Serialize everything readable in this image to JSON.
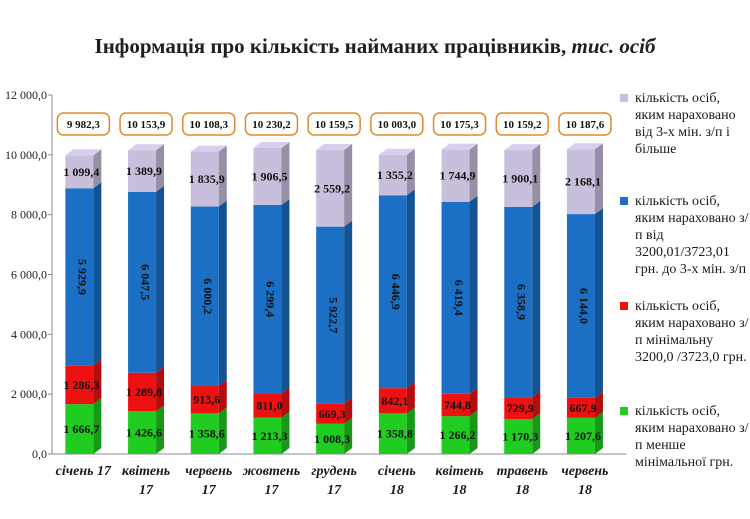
{
  "chart_data": {
    "type": "bar",
    "stacked": true,
    "title": "Інформація про кількість найманих працівників,",
    "title_unit": "тис. осіб",
    "categories": [
      "січень 17",
      "квітень 17",
      "червень 17",
      "жовтень 17",
      "грудень 17",
      "січень 18",
      "квітень 18",
      "травень 18",
      "червень 18"
    ],
    "ylim": [
      0,
      12000
    ],
    "yticks": [
      "0,0",
      "2 000,0",
      "4 000,0",
      "6 000,0",
      "8 000,0",
      "10 000,0",
      "12 000,0"
    ],
    "ytick_values": [
      0,
      2000,
      4000,
      6000,
      8000,
      10000,
      12000
    ],
    "totals": [
      9982.3,
      10153.9,
      10108.3,
      10230.2,
      10159.5,
      10003.0,
      10175.3,
      10159.2,
      10187.6
    ],
    "total_labels": [
      "9 982,3",
      "10 153,9",
      "10 108,3",
      "10 230,2",
      "10 159,5",
      "10 003,0",
      "10 175,3",
      "10 159,2",
      "10 187,6"
    ],
    "series": [
      {
        "name": "кількість осіб, яким нараховано з/п менше мінімальної грн.",
        "color": "#1fcc1f",
        "values": [
          1666.7,
          1426.6,
          1358.6,
          1213.3,
          1008.3,
          1358.8,
          1266.2,
          1170.3,
          1207.6
        ],
        "labels": [
          "1 666,7",
          "1 426,6",
          "1 358,6",
          "1 213,3",
          "1 008,3",
          "1 358,8",
          "1 266,2",
          "1 170,3",
          "1 207,6"
        ]
      },
      {
        "name": "кількість осіб, яким нараховано з/п мінімальну 3200,0 /3723,0 грн.",
        "color": "#ee1111",
        "values": [
          1286.3,
          1289.8,
          913.6,
          811.0,
          669.3,
          842.1,
          744.8,
          729.9,
          667.9
        ],
        "labels": [
          "1 286,3",
          "1 289,8",
          "913,6",
          "811,0",
          "669,3",
          "842,1",
          "744,8",
          "729,9",
          "667,9"
        ]
      },
      {
        "name": "кількість осіб, яким нараховано з/п від 3200,01/3723,01 грн. до 3-х мін. з/п",
        "color": "#1b6fc4",
        "values": [
          5929.9,
          6047.5,
          6000.2,
          6299.4,
          5922.7,
          6446.9,
          6419.4,
          6358.9,
          6144.0
        ],
        "labels": [
          "5 929,9",
          "6 047,5",
          "6 000,2",
          "6 299,4",
          "5 922,7",
          "6 446,9",
          "6 419,4",
          "6 358,9",
          "6 144,0"
        ]
      },
      {
        "name": "кількість осіб, яким нараховано від 3-х мін. з/п і більше",
        "color": "#c8bfdc",
        "values": [
          1099.4,
          1389.9,
          1835.9,
          1906.5,
          2559.2,
          1355.2,
          1744.9,
          1900.1,
          2168.1
        ],
        "labels": [
          "1 099,4",
          "1 389,9",
          "1 835,9",
          "1 906,5",
          "2 559,2",
          "1 355,2",
          "1 744,9",
          "1 900,1",
          "2 168,1"
        ]
      }
    ],
    "legend_position": "right",
    "grid": false
  }
}
